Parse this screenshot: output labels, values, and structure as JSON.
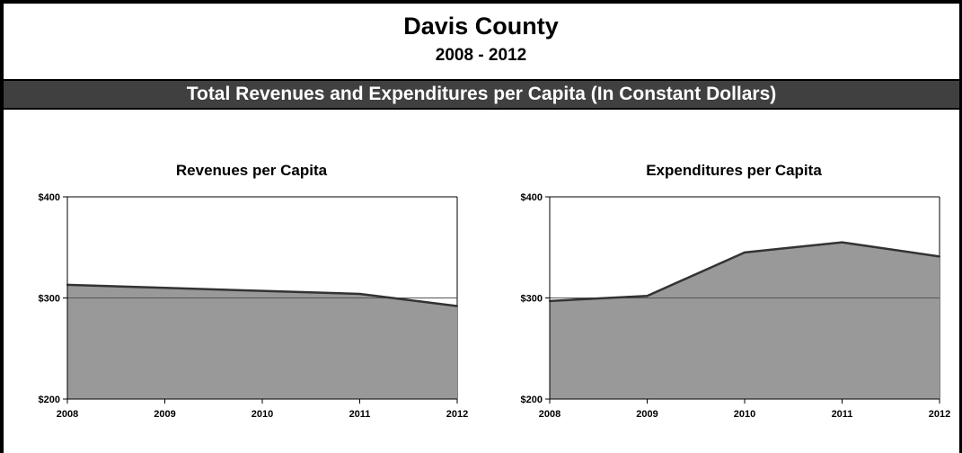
{
  "header": {
    "title": "Davis County",
    "subtitle": "2008 - 2012",
    "banner": "Total Revenues and Expenditures per Capita (In Constant Dollars)"
  },
  "colors": {
    "area_fill": "#999999",
    "line": "#333333",
    "banner_bg": "#404040"
  },
  "chart_data": [
    {
      "type": "area",
      "title": "Revenues per Capita",
      "x": [
        "2008",
        "2009",
        "2010",
        "2011",
        "2012"
      ],
      "values": [
        313,
        310,
        307,
        304,
        292
      ],
      "y_ticks": [
        "$200",
        "$300",
        "$400"
      ],
      "ylim": [
        200,
        400
      ],
      "reference_line": 300,
      "grid": false,
      "legend": "none"
    },
    {
      "type": "area",
      "title": "Expenditures per Capita",
      "x": [
        "2008",
        "2009",
        "2010",
        "2011",
        "2012"
      ],
      "values": [
        297,
        302,
        345,
        355,
        341
      ],
      "y_ticks": [
        "$200",
        "$300",
        "$400"
      ],
      "ylim": [
        200,
        400
      ],
      "reference_line": 300,
      "grid": false,
      "legend": "none"
    }
  ]
}
